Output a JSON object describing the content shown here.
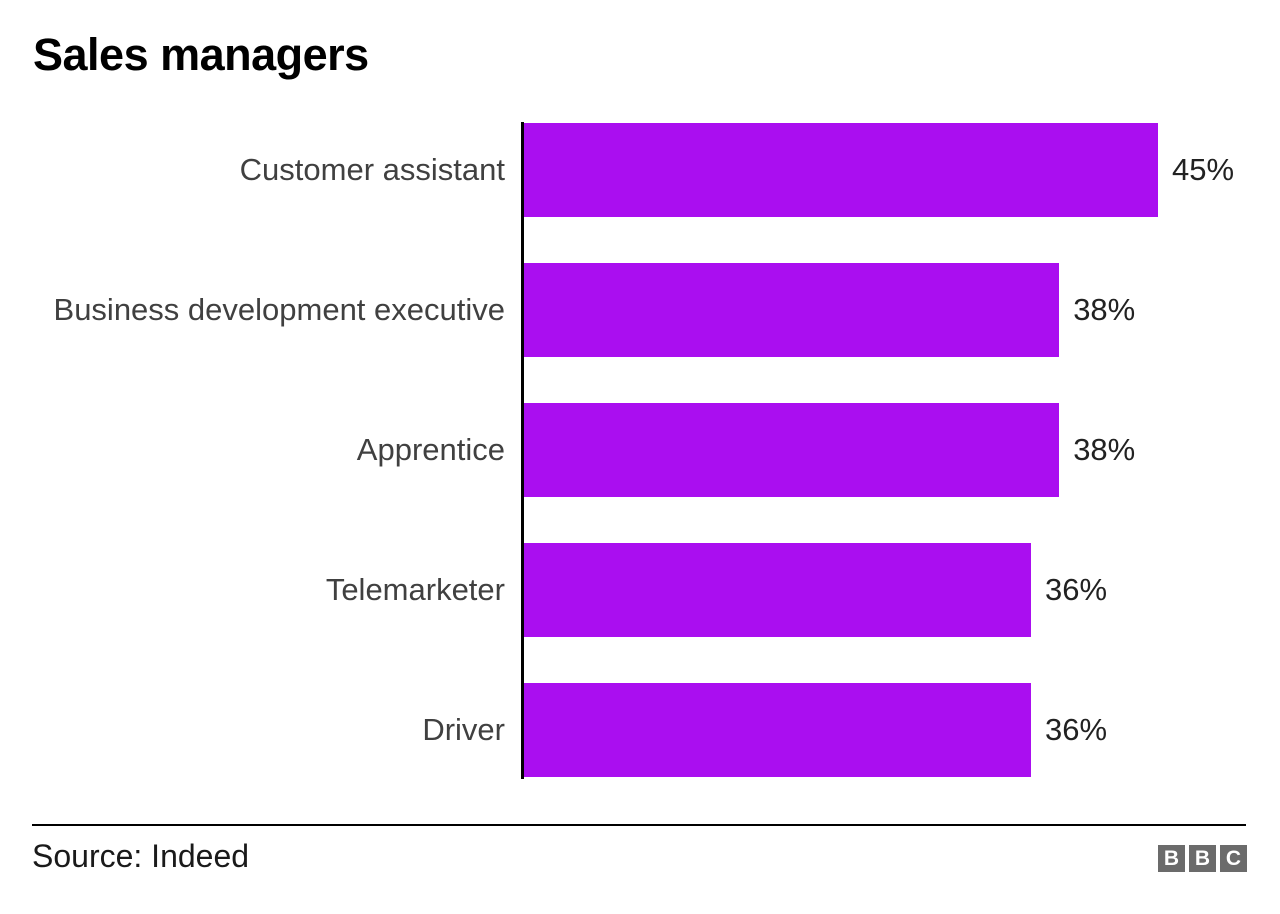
{
  "page": {
    "title": "Sales managers"
  },
  "chart_data": {
    "type": "bar",
    "orientation": "horizontal",
    "title": "Sales managers",
    "categories": [
      "Customer assistant",
      "Business development executive",
      "Apprentice",
      "Telemarketer",
      "Driver"
    ],
    "values": [
      45,
      38,
      38,
      36,
      36
    ],
    "value_labels": [
      "45%",
      "38%",
      "38%",
      "36%",
      "36%"
    ],
    "unit": "%",
    "xlabel": "",
    "ylabel": "",
    "xlim": [
      0,
      45
    ],
    "grid": false,
    "legend": "none",
    "bar_color": "#aa0ef0",
    "axis_color": "#000000"
  },
  "footer": {
    "source": "Source: Indeed",
    "logo": {
      "letters": [
        "B",
        "B",
        "C"
      ],
      "square_color": "#6b6b6b",
      "letter_color": "#ffffff"
    }
  }
}
